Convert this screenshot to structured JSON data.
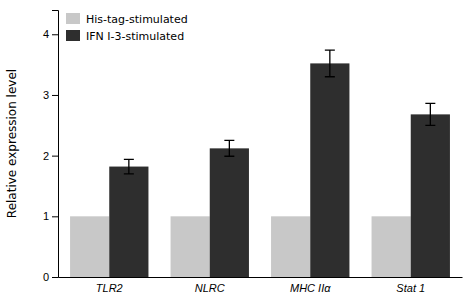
{
  "chart_data": {
    "type": "bar",
    "categories": [
      "TLR2",
      "NLRC",
      "MHC IIα",
      "Stat 1"
    ],
    "series": [
      {
        "name": "His-tag-stimulated",
        "color": "#c8c8c8",
        "values": [
          1.0,
          1.0,
          1.0,
          1.0
        ]
      },
      {
        "name": "IFN I-3-stimulated",
        "color": "#2e2e2e",
        "values": [
          1.82,
          2.12,
          3.52,
          2.68
        ],
        "errors": [
          0.12,
          0.13,
          0.22,
          0.18
        ]
      }
    ],
    "ylabel": "Relative expression level",
    "ylim": [
      0,
      4.4
    ],
    "yticks": [
      0,
      1,
      2,
      3,
      4
    ],
    "legend": "upper left"
  }
}
